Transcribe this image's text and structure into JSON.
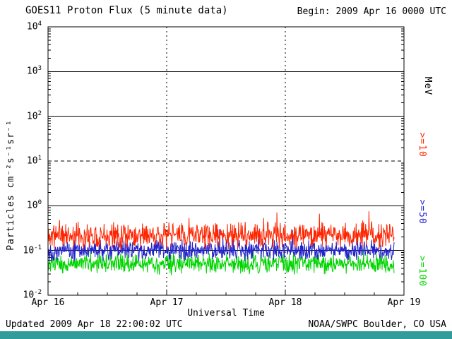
{
  "header": {
    "begin": "Begin: 2009 Apr 16 0000 UTC"
  },
  "footer": {
    "updated": "Updated 2009 Apr 18 22:00:02 UTC",
    "credit": "NOAA/SWPC Boulder, CO USA",
    "bar_color": "#309C9C"
  },
  "chart_data": {
    "type": "line",
    "title": "GOES11 Proton Flux (5 minute data)",
    "xlabel": "Universal Time",
    "ylabel": "Particles cm⁻²s⁻¹sr⁻¹",
    "right_axis_unit": "MeV",
    "x_tick_labels": [
      "Apr 16",
      "Apr 17",
      "Apr 18",
      "Apr 19"
    ],
    "x_days": 3,
    "points_per_day": 288,
    "data_end_day": 2.917,
    "ylim_log10": [
      -2,
      4
    ],
    "y_tick_exponents": [
      4,
      3,
      2,
      1,
      0,
      -1,
      -2
    ],
    "hgrid_solid_log10": [
      3,
      2,
      0,
      -1
    ],
    "hgrid_dashed_log10": [
      1
    ],
    "vgrid_dashed_days": [
      1,
      2
    ],
    "grid_color": "#000000",
    "series": [
      {
        "name": ">=10 MeV",
        "label": ">=10",
        "color": "#FF2400",
        "base_log10": -0.66,
        "noise_log10": 0.33,
        "spike_prob": 0.03,
        "spike_log10": 0.45,
        "seed": 11
      },
      {
        "name": ">=50 MeV",
        "label": ">=50",
        "color": "#2222CC",
        "base_log10": -1.0,
        "noise_log10": 0.26,
        "spike_prob": 0.02,
        "spike_log10": 0.3,
        "seed": 22
      },
      {
        "name": ">=100 MeV",
        "label": ">=100",
        "color": "#00D400",
        "base_log10": -1.3,
        "noise_log10": 0.26,
        "spike_prob": 0.02,
        "spike_log10": 0.25,
        "seed": 33
      }
    ]
  }
}
